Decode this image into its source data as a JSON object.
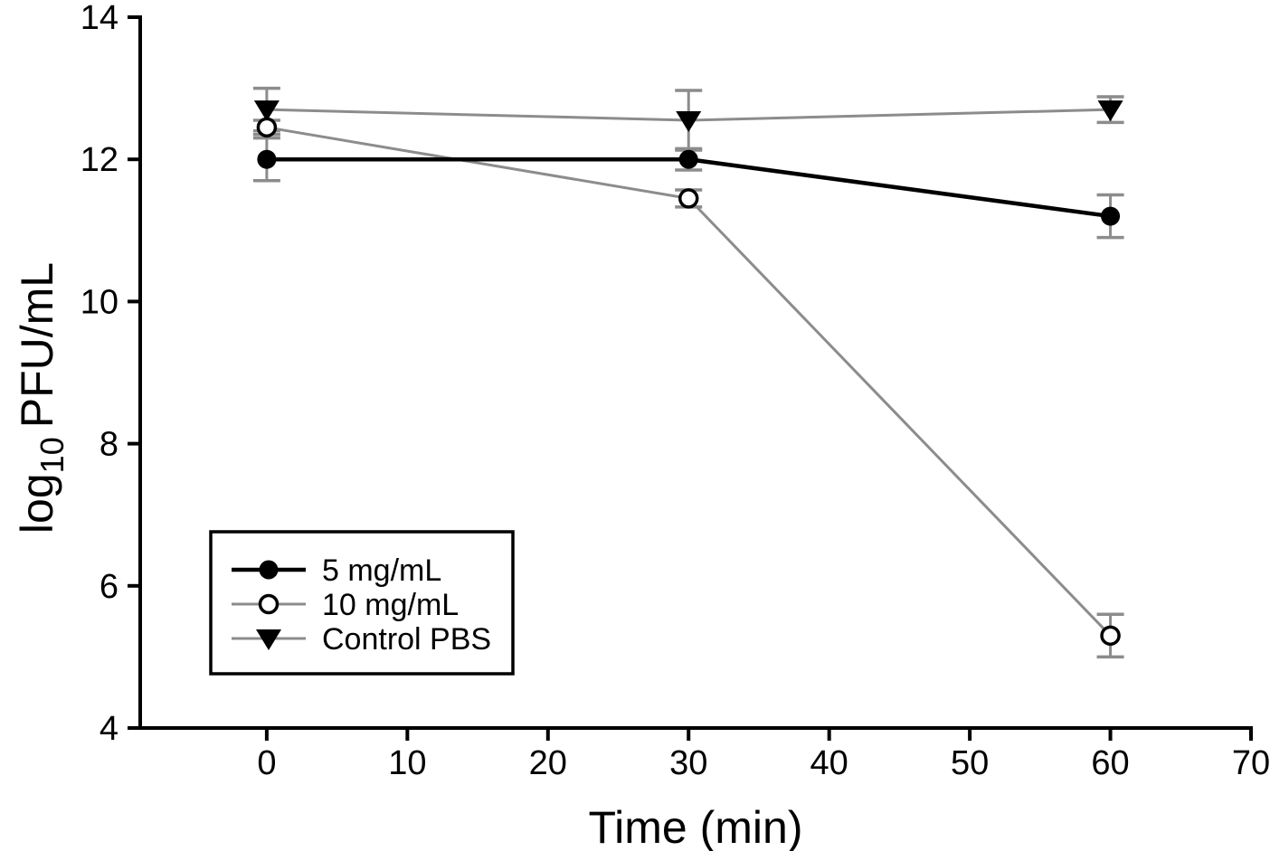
{
  "figure": {
    "background": "#ffffff"
  },
  "chart_data": {
    "type": "line",
    "title": "",
    "xlabel": "Time (min)",
    "ylabel": "log10 PFU/mL",
    "ylabel_parts": [
      "log",
      "10",
      "PFU/mL"
    ],
    "xlim": [
      -9,
      70
    ],
    "ylim": [
      4,
      14
    ],
    "x_ticks": [
      0,
      10,
      20,
      30,
      40,
      50,
      60,
      70
    ],
    "y_ticks": [
      4,
      6,
      8,
      10,
      12,
      14
    ],
    "grid": false,
    "x": [
      0,
      30,
      60
    ],
    "series": [
      {
        "name": "Control PBS",
        "values": [
          12.7,
          12.55,
          12.7
        ],
        "errors": [
          0.3,
          0.42,
          0.18
        ],
        "line_color": "#8c8c8c",
        "line_width": 3,
        "marker": "triangle-down-filled",
        "marker_color": "#000000"
      },
      {
        "name": "10 mg/mL",
        "values": [
          12.45,
          11.45,
          5.3
        ],
        "errors": [
          0.1,
          0.12,
          0.3
        ],
        "line_color": "#8c8c8c",
        "line_width": 3,
        "marker": "circle-open",
        "marker_color": "#000000"
      },
      {
        "name": "5 mg/mL",
        "values": [
          12.0,
          12.0,
          11.2
        ],
        "errors": [
          0.3,
          0.15,
          0.3
        ],
        "line_color": "#000000",
        "line_width": 4.5,
        "marker": "circle-filled",
        "marker_color": "#000000"
      }
    ],
    "error_bar_color": "#8c8c8c",
    "axis_color": "#000000",
    "text_color": "#000000",
    "legend": {
      "position": "lower-left",
      "border_color": "#000000",
      "entries": [
        "5 mg/mL",
        "10 mg/mL",
        "Control PBS"
      ]
    }
  }
}
